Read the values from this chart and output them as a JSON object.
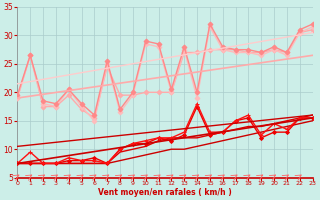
{
  "xlabel": "Vent moyen/en rafales ( km/h )",
  "xlim": [
    0,
    23
  ],
  "ylim": [
    5,
    35
  ],
  "yticks": [
    5,
    10,
    15,
    20,
    25,
    30,
    35
  ],
  "xticks": [
    0,
    1,
    2,
    3,
    4,
    5,
    6,
    7,
    8,
    9,
    10,
    11,
    12,
    13,
    14,
    15,
    16,
    17,
    18,
    19,
    20,
    21,
    22,
    23
  ],
  "bg_color": "#cceee8",
  "grid_color": "#aacccc",
  "series": [
    {
      "x": [
        0,
        1,
        2,
        3,
        4,
        5,
        6,
        7,
        8,
        9,
        10,
        11,
        12,
        13,
        14,
        15,
        16,
        17,
        18,
        19,
        20,
        21,
        22,
        23
      ],
      "y": [
        7.5,
        7.5,
        7.5,
        7.5,
        7.5,
        7.5,
        7.5,
        7.5,
        8.0,
        8.5,
        9.0,
        9.5,
        10.0,
        10.0,
        10.5,
        11.0,
        11.5,
        12.0,
        12.5,
        13.0,
        13.5,
        14.0,
        14.5,
        15.0
      ],
      "color": "#cc0000",
      "lw": 1.0,
      "marker": null,
      "linestyle": "-"
    },
    {
      "x": [
        0,
        1,
        2,
        3,
        4,
        5,
        6,
        7,
        8,
        9,
        10,
        11,
        12,
        13,
        14,
        15,
        16,
        17,
        18,
        19,
        20,
        21,
        22,
        23
      ],
      "y": [
        7.5,
        7.5,
        7.5,
        7.5,
        7.5,
        7.5,
        7.5,
        7.5,
        9.5,
        10.0,
        10.5,
        11.5,
        12.0,
        12.0,
        12.0,
        12.5,
        13.0,
        13.5,
        14.0,
        14.0,
        14.5,
        15.0,
        15.5,
        16.0
      ],
      "color": "#dd0000",
      "lw": 1.0,
      "marker": null,
      "linestyle": "-"
    },
    {
      "x": [
        0,
        1,
        2,
        3,
        4,
        5,
        6,
        7,
        8,
        9,
        10,
        11,
        12,
        13,
        14,
        15,
        16,
        17,
        18,
        19,
        20,
        21,
        22,
        23
      ],
      "y": [
        7.5,
        7.5,
        7.5,
        7.5,
        8.0,
        8.0,
        8.5,
        7.5,
        10.0,
        11.0,
        11.0,
        12.0,
        11.5,
        12.5,
        17.5,
        12.5,
        13.0,
        15.0,
        15.5,
        12.0,
        13.0,
        13.0,
        15.5,
        15.5
      ],
      "color": "#ee0000",
      "lw": 1.0,
      "marker": "D",
      "ms": 2.0,
      "linestyle": "-"
    },
    {
      "x": [
        0,
        1,
        2,
        3,
        4,
        5,
        6,
        7,
        8,
        9,
        10,
        11,
        12,
        13,
        14,
        15,
        16,
        17,
        18,
        19,
        20,
        21,
        22,
        23
      ],
      "y": [
        7.5,
        9.5,
        7.5,
        7.5,
        8.5,
        8.0,
        8.0,
        7.5,
        10.0,
        11.0,
        11.5,
        12.0,
        12.0,
        13.0,
        18.0,
        13.0,
        13.0,
        15.0,
        16.0,
        12.5,
        14.5,
        13.5,
        15.5,
        15.5
      ],
      "color": "#ff1111",
      "lw": 1.0,
      "marker": "+",
      "ms": 3.5,
      "linestyle": "-"
    },
    {
      "x": [
        0,
        1,
        2,
        3,
        4,
        5,
        6,
        7,
        8,
        9,
        10,
        11,
        12,
        13,
        14,
        15,
        16,
        17,
        18,
        19,
        20,
        21,
        22,
        23
      ],
      "y": [
        19.0,
        26.5,
        17.5,
        17.5,
        19.5,
        17.0,
        15.5,
        24.5,
        19.5,
        19.5,
        20.0,
        20.0,
        20.0,
        27.0,
        27.0,
        27.5,
        27.5,
        27.5,
        27.0,
        27.0,
        27.5,
        27.0,
        30.5,
        31.0
      ],
      "color": "#ffaaaa",
      "lw": 1.0,
      "marker": "D",
      "ms": 2.5,
      "linestyle": "-"
    },
    {
      "x": [
        0,
        1,
        2,
        3,
        4,
        5,
        6,
        7,
        8,
        9,
        10,
        11,
        12,
        13,
        14,
        15,
        16,
        17,
        18,
        19,
        20,
        21,
        22,
        23
      ],
      "y": [
        19.0,
        26.5,
        18.0,
        17.5,
        20.5,
        17.5,
        15.0,
        25.0,
        16.5,
        19.5,
        28.5,
        28.0,
        20.0,
        27.5,
        19.0,
        31.5,
        27.5,
        27.0,
        27.0,
        26.5,
        27.5,
        26.5,
        30.5,
        31.5
      ],
      "color": "#ffbbbb",
      "lw": 1.0,
      "marker": "D",
      "ms": 2.5,
      "linestyle": "-"
    },
    {
      "x": [
        0,
        1,
        2,
        3,
        4,
        5,
        6,
        7,
        8,
        9,
        10,
        11,
        12,
        13,
        14,
        15,
        16,
        17,
        18,
        19,
        20,
        21,
        22,
        23
      ],
      "y": [
        19.5,
        26.5,
        18.5,
        18.0,
        20.5,
        18.0,
        16.0,
        25.5,
        17.0,
        20.0,
        29.0,
        28.5,
        20.5,
        28.0,
        20.0,
        32.0,
        28.0,
        27.5,
        27.5,
        27.0,
        28.0,
        27.0,
        31.0,
        32.0
      ],
      "color": "#ff8888",
      "lw": 1.0,
      "marker": "D",
      "ms": 2.5,
      "linestyle": "-"
    },
    {
      "x": [
        0,
        23
      ],
      "y": [
        7.5,
        15.5
      ],
      "color": "#cc0000",
      "lw": 1.2,
      "marker": null,
      "linestyle": "-"
    },
    {
      "x": [
        0,
        23
      ],
      "y": [
        10.5,
        16.0
      ],
      "color": "#cc0000",
      "lw": 1.0,
      "marker": null,
      "linestyle": "-"
    },
    {
      "x": [
        0,
        23
      ],
      "y": [
        19.0,
        26.5
      ],
      "color": "#ffaaaa",
      "lw": 1.2,
      "marker": null,
      "linestyle": "-"
    },
    {
      "x": [
        0,
        23
      ],
      "y": [
        21.5,
        30.5
      ],
      "color": "#ffcccc",
      "lw": 1.0,
      "marker": null,
      "linestyle": "-"
    }
  ],
  "arrow_color": "#ff6666",
  "tick_color": "#cc0000",
  "xlabel_color": "#cc0000",
  "spine_bottom_color": "#cc0000"
}
